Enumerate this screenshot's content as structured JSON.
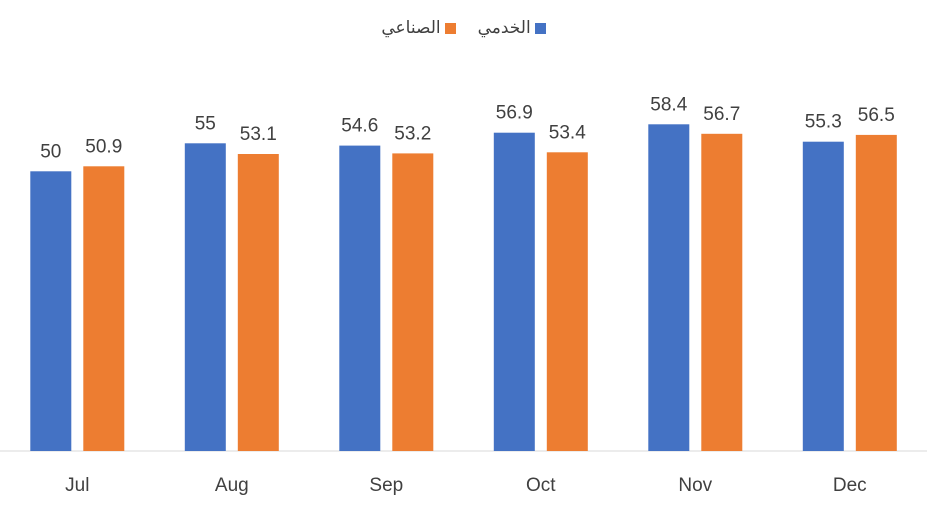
{
  "chart_data": {
    "type": "bar",
    "categories": [
      "Jul",
      "Aug",
      "Sep",
      "Oct",
      "Nov",
      "Dec"
    ],
    "series": [
      {
        "name": "الخدمي",
        "color": "#4472C4",
        "values": [
          50,
          55,
          54.6,
          56.9,
          58.4,
          55.3
        ]
      },
      {
        "name": "الصناعي",
        "color": "#ED7D31",
        "values": [
          50.9,
          53.1,
          53.2,
          53.4,
          56.7,
          56.5
        ]
      }
    ],
    "title": "",
    "xlabel": "",
    "ylabel": "",
    "legend_position": "top",
    "grid": false,
    "show_data_labels": true
  }
}
